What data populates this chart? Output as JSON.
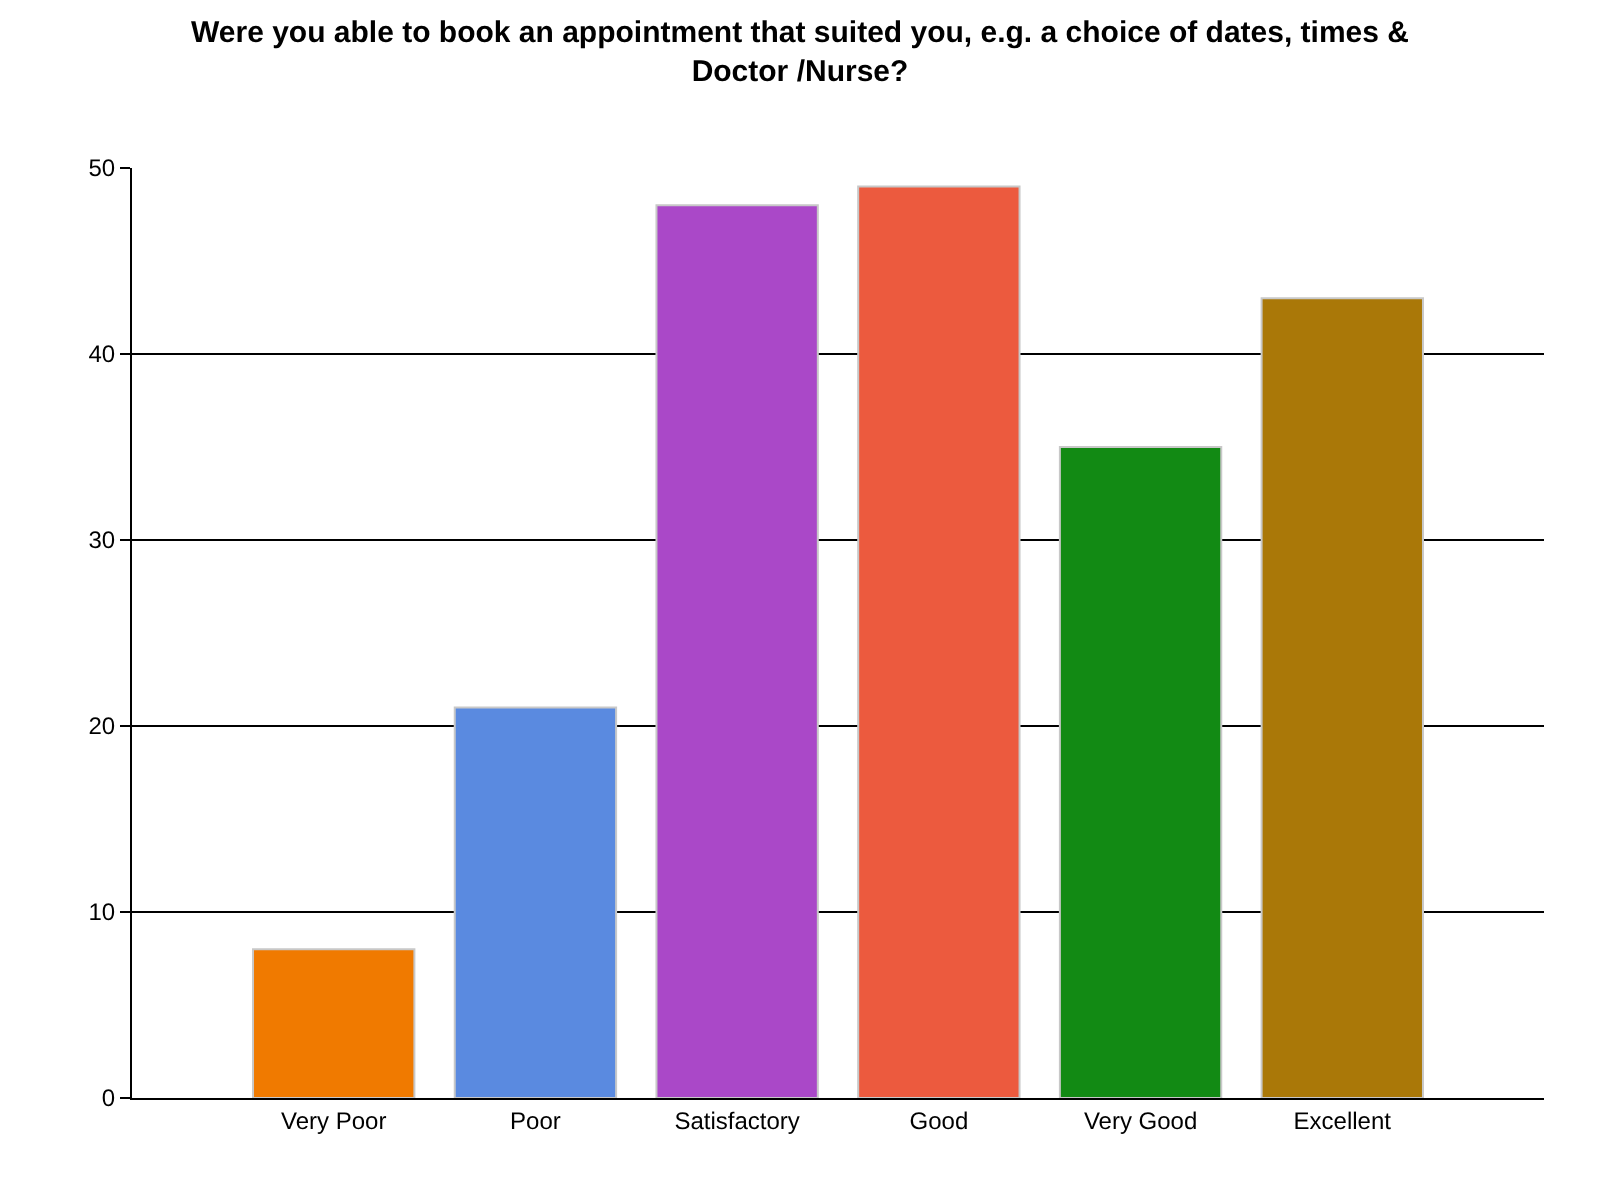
{
  "chart_data": {
    "type": "bar",
    "title": "Were you able to book an appointment that suited you, e.g. a choice of dates, times & Doctor /Nurse?",
    "categories": [
      "Very Poor",
      "Poor",
      "Satisfactory",
      "Good",
      "Very Good",
      "Excellent"
    ],
    "values": [
      8,
      21,
      48,
      49,
      35,
      43
    ],
    "colors": [
      "#f07a00",
      "#5a8ae0",
      "#aa48c8",
      "#ec5a3e",
      "#128a14",
      "#aa7808"
    ],
    "ylim": [
      0,
      50
    ],
    "yticks": [
      0,
      10,
      20,
      30,
      40,
      50
    ],
    "grid": "y"
  }
}
